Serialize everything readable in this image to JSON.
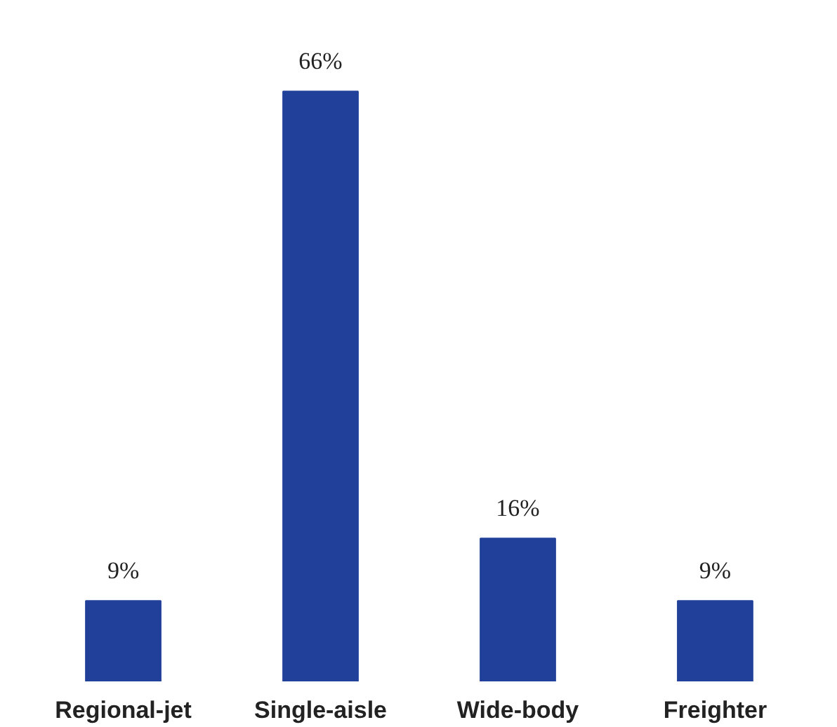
{
  "chart_data": {
    "type": "bar",
    "categories": [
      "Regional-jet",
      "Single-aisle",
      "Wide-body",
      "Freighter"
    ],
    "values": [
      9,
      66,
      16,
      9
    ],
    "value_labels": [
      "9%",
      "66%",
      "16%",
      "9%"
    ],
    "color": "#21409a"
  }
}
